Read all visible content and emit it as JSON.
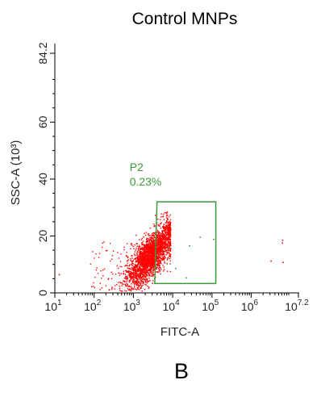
{
  "chart_data": {
    "type": "scatter",
    "title": "Control MNPs",
    "xlabel": "FITC-A",
    "ylabel": "SSC-A (10³)",
    "x_scale": "log10",
    "xlim": [
      10,
      15848932
    ],
    "ylim": [
      0,
      84.2
    ],
    "x_ticks": [
      {
        "base": "10",
        "exp": "1"
      },
      {
        "base": "10",
        "exp": "2"
      },
      {
        "base": "10",
        "exp": "3"
      },
      {
        "base": "10",
        "exp": "4"
      },
      {
        "base": "10",
        "exp": "5"
      },
      {
        "base": "10",
        "exp": "6"
      },
      {
        "base": "10",
        "exp": "7.2"
      }
    ],
    "y_ticks": [
      "0",
      "20",
      "40",
      "60",
      "84.2"
    ],
    "point_color": "#ff0000",
    "gate": {
      "name": "P2",
      "percent": "0.23%",
      "color": "#3a9a3a",
      "polygon": [
        [
          3500,
          3.3
        ],
        [
          4000,
          32
        ],
        [
          125000,
          32
        ],
        [
          125000,
          3.3
        ]
      ]
    },
    "cluster": {
      "approx_count": 2500,
      "x_range_log10": [
        1.9,
        4.0
      ],
      "y_range": [
        1,
        28
      ],
      "center_log10_x": 3.45,
      "center_y": 13
    },
    "outliers": [
      [
        50000,
        19.5
      ],
      [
        110000,
        18.8
      ],
      [
        8000,
        15.8
      ],
      [
        27000,
        16.5
      ],
      [
        7200,
        10.2
      ],
      [
        12000,
        8.6
      ],
      [
        1700,
        12.4
      ],
      [
        22000,
        5.3
      ],
      [
        6300000,
        18.5
      ],
      [
        6500000,
        10.7
      ],
      [
        3200000,
        11.2
      ],
      [
        13,
        6.4
      ],
      [
        6200000,
        17.5
      ]
    ]
  },
  "panel_label": "B"
}
